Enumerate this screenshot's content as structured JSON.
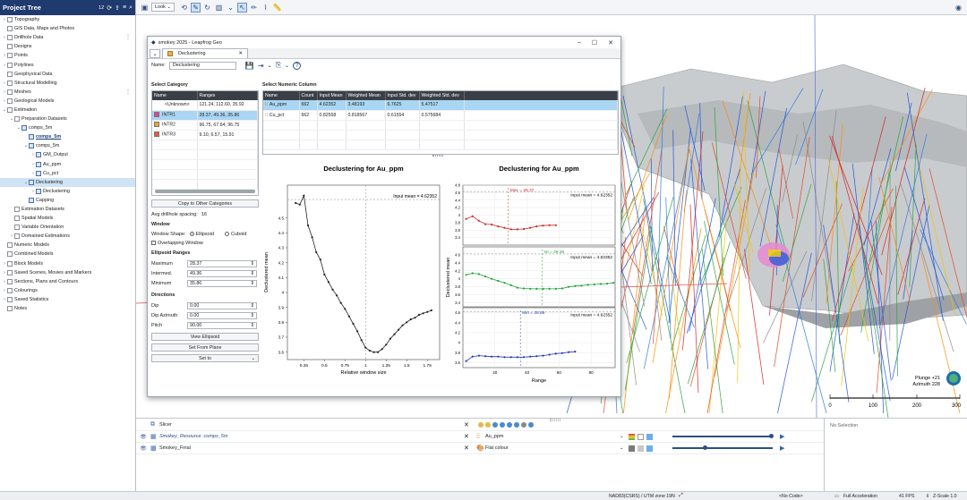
{
  "project_tree": {
    "title": "Project Tree",
    "counter": "12",
    "items": [
      {
        "label": "Topography",
        "level": 0,
        "chev": "›"
      },
      {
        "label": "GIS Data, Maps and Photos",
        "level": 0,
        "chev": ""
      },
      {
        "label": "Drillhole Data",
        "level": 0,
        "chev": "›",
        "kebab": true
      },
      {
        "label": "Designs",
        "level": 0,
        "chev": ""
      },
      {
        "label": "Points",
        "level": 0,
        "chev": "›"
      },
      {
        "label": "Polylines",
        "level": 0,
        "chev": "›"
      },
      {
        "label": "Geophysical Data",
        "level": 0,
        "chev": ""
      },
      {
        "label": "Structural Modelling",
        "level": 0,
        "chev": "›"
      },
      {
        "label": "Meshes",
        "level": 0,
        "chev": "›",
        "kebab": true
      },
      {
        "label": "Geological Models",
        "level": 0,
        "chev": "›"
      },
      {
        "label": "Estimation",
        "level": 0,
        "chev": "⌄"
      },
      {
        "label": "Preparation Datasets",
        "level": 1,
        "chev": "⌄"
      },
      {
        "label": "comps_5m",
        "level": 2,
        "chev": "⌄"
      },
      {
        "label": "comps_5m",
        "level": 3,
        "chev": "",
        "bold": true
      },
      {
        "label": "comps_5m",
        "level": 3,
        "chev": "⌄"
      },
      {
        "label": "GM_Output",
        "level": 4,
        "chev": "›"
      },
      {
        "label": "Au_ppm",
        "level": 4,
        "chev": "›"
      },
      {
        "label": "Cu_pct",
        "level": 4,
        "chev": "›"
      },
      {
        "label": "Declustering",
        "level": 3,
        "chev": "⌄",
        "selected": true
      },
      {
        "label": "Declustering",
        "level": 4,
        "chev": "›"
      },
      {
        "label": "Capping",
        "level": 3,
        "chev": ""
      },
      {
        "label": "Estimation Datasets",
        "level": 1,
        "chev": ""
      },
      {
        "label": "Spatial Models",
        "level": 1,
        "chev": ""
      },
      {
        "label": "Variable Orientation",
        "level": 1,
        "chev": ""
      },
      {
        "label": "Domained Estimations",
        "level": 1,
        "chev": "›"
      },
      {
        "label": "Numeric Models",
        "level": 0,
        "chev": ""
      },
      {
        "label": "Combined Models",
        "level": 0,
        "chev": ""
      },
      {
        "label": "Block Models",
        "level": 0,
        "chev": "›"
      },
      {
        "label": "Saved Scenes, Movies and Markers",
        "level": 0,
        "chev": "›"
      },
      {
        "label": "Sections, Plans and Contours",
        "level": 0,
        "chev": "›"
      },
      {
        "label": "Colourings",
        "level": 0,
        "chev": "›"
      },
      {
        "label": "Saved Statistics",
        "level": 0,
        "chev": "›"
      },
      {
        "label": "Notes",
        "level": 0,
        "chev": ""
      }
    ]
  },
  "toolbar": {
    "look_label": "Look"
  },
  "dialog": {
    "title": "smokey 2025 - Leapfrog Geo",
    "tab_label": "Declustering",
    "name_label": "Name:",
    "name_value": "Declustering",
    "category": {
      "title": "Select Category",
      "headers": [
        "Name",
        "Ranges"
      ],
      "rows": [
        {
          "name": "<Unknown>",
          "ranges": "121.24, 112.60, 35.92",
          "color": ""
        },
        {
          "name": "INTR1",
          "ranges": "28.37, 49.36, 35.86",
          "color": "#e040b0",
          "hl": true
        },
        {
          "name": "INTR2",
          "ranges": "96.75, 67.64, 96.75",
          "color": "#f0a030"
        },
        {
          "name": "INTR3",
          "ranges": "9.10, 6.57, 15.91",
          "color": "#e85a3a"
        }
      ],
      "copy_button": "Copy to Other Categories",
      "avg_spacing_label": "Avg drillhole spacing:",
      "avg_spacing_value": "16"
    },
    "window": {
      "title": "Window",
      "shape_label": "Window Shape:",
      "opt_ellipsoid": "Ellipsoid",
      "opt_cuboid": "Cuboid",
      "overlapping": "Overlapping Window"
    },
    "ellipsoid": {
      "title": "Ellipsoid Ranges",
      "fields": [
        {
          "label": "Maximum",
          "value": "28.37"
        },
        {
          "label": "Intermed.",
          "value": "49.36"
        },
        {
          "label": "Minimum",
          "value": "35.86"
        }
      ]
    },
    "directions": {
      "title": "Directions",
      "fields": [
        {
          "label": "Dip",
          "value": "0.00"
        },
        {
          "label": "Dip Azimuth",
          "value": "0.00"
        },
        {
          "label": "Pitch",
          "value": "90.00"
        }
      ],
      "view_ellipsoid": "View Ellipsoid",
      "set_from_plane": "Set From Plane",
      "set_to": "Set to"
    },
    "numeric": {
      "title": "Select Numeric Column",
      "headers": [
        "Name",
        "Count",
        "Input Mean",
        "Weighted Mean",
        "Input Std. dev",
        "Weighted Std. dev"
      ],
      "rows": [
        {
          "cells": [
            "Au_ppm",
            "662",
            "4.62352",
            "3.48193",
            "6.7625",
            "5.47517"
          ],
          "hl": true
        },
        {
          "cells": [
            "Cu_pct",
            "662",
            "0.82558",
            "0.818567",
            "0.61554",
            "0.575684"
          ]
        }
      ]
    }
  },
  "chart_data": [
    {
      "type": "line",
      "title": "Declustering for Au_ppm",
      "xlabel": "Relative window size",
      "ylabel": "Declustered mean",
      "xlim": [
        0.05,
        1.9
      ],
      "ylim": [
        3.55,
        4.72
      ],
      "xticks": [
        "0.25",
        "0.5",
        "0.75",
        "1",
        "1.25",
        "1.5",
        "1.75"
      ],
      "xtick_values": [
        0.25,
        0.5,
        0.75,
        1,
        1.25,
        1.5,
        1.75
      ],
      "yticks": [
        "3.6",
        "3.7",
        "3.8",
        "3.9",
        "4",
        "4.1",
        "4.2",
        "4.3",
        "4.4",
        "4.5"
      ],
      "ytick_values": [
        3.6,
        3.7,
        3.8,
        3.9,
        4,
        4.1,
        4.2,
        4.3,
        4.4,
        4.5
      ],
      "input_mean_label": "Input mean = 4.62352",
      "input_mean": 4.62352,
      "vline": 1.0,
      "x": [
        0.15,
        0.2,
        0.25,
        0.3,
        0.35,
        0.4,
        0.45,
        0.5,
        0.55,
        0.6,
        0.65,
        0.7,
        0.75,
        0.8,
        0.85,
        0.9,
        0.95,
        1.0,
        1.05,
        1.1,
        1.15,
        1.2,
        1.25,
        1.3,
        1.35,
        1.4,
        1.45,
        1.5,
        1.55,
        1.6,
        1.65,
        1.7,
        1.75,
        1.8
      ],
      "y": [
        4.6,
        4.59,
        4.65,
        4.45,
        4.37,
        4.27,
        4.22,
        4.12,
        4.07,
        4.02,
        3.98,
        3.93,
        3.89,
        3.84,
        3.79,
        3.74,
        3.68,
        3.63,
        3.61,
        3.6,
        3.6,
        3.62,
        3.65,
        3.69,
        3.72,
        3.75,
        3.78,
        3.8,
        3.82,
        3.83,
        3.85,
        3.86,
        3.87,
        3.88
      ]
    },
    {
      "type": "line",
      "title": "Declustering for Au_ppm",
      "xlabel": "Range",
      "ylabel": "Declustered mean",
      "xlim": [
        0,
        95
      ],
      "xticks": [
        "20",
        "40",
        "60",
        "80"
      ],
      "xtick_values": [
        20,
        40,
        60,
        80
      ],
      "panels": [
        {
          "name": "Maximum",
          "label": "Max = 28.37",
          "vline": 28.37,
          "color": "#cc2a2a",
          "ylim": [
            3.2,
            4.8
          ],
          "yticks": [
            "3.4",
            "3.6",
            "3.8",
            "4",
            "4.2",
            "4.4",
            "4.6",
            "4.8"
          ],
          "ytick_values": [
            3.4,
            3.6,
            3.8,
            4,
            4.2,
            4.4,
            4.6,
            4.8
          ],
          "input_mean": 4.62352,
          "input_mean_label": "Input mean = 4.62352",
          "x": [
            2,
            6,
            10,
            14,
            18,
            22,
            26,
            30,
            34,
            38,
            42,
            46,
            50,
            54,
            58
          ],
          "y": [
            3.9,
            3.97,
            3.85,
            3.76,
            3.75,
            3.7,
            3.66,
            3.62,
            3.62,
            3.63,
            3.66,
            3.7,
            3.72,
            3.73,
            3.73
          ]
        },
        {
          "name": "Intermed.",
          "label": "Int = 49.36",
          "vline": 49.36,
          "color": "#23a33a",
          "ylim": [
            3.3,
            4.8
          ],
          "yticks": [
            "3.4",
            "3.6",
            "3.8",
            "4",
            "4.2",
            "4.4",
            "4.6"
          ],
          "ytick_values": [
            3.4,
            3.6,
            3.8,
            4,
            4.2,
            4.4,
            4.6
          ],
          "input_mean": 4.62352,
          "input_mean_label": "Input mean = 4.62352",
          "x": [
            2,
            6,
            10,
            14,
            18,
            22,
            26,
            30,
            34,
            38,
            42,
            46,
            50,
            54,
            58,
            62,
            66,
            70,
            74,
            78,
            82,
            86,
            90,
            94
          ],
          "y": [
            4.1,
            4.14,
            4.12,
            4.06,
            4.0,
            3.95,
            3.9,
            3.84,
            3.78,
            3.76,
            3.75,
            3.75,
            3.75,
            3.75,
            3.75,
            3.76,
            3.8,
            3.82,
            3.83,
            3.85,
            3.86,
            3.87,
            3.88,
            3.9
          ]
        },
        {
          "name": "Minimum",
          "label": "Min = 35.86",
          "vline": 35.86,
          "color": "#2838b8",
          "ylim": [
            3.5,
            4.7
          ],
          "yticks": [
            "3.6",
            "3.8",
            "4",
            "4.2",
            "4.4",
            "4.6"
          ],
          "ytick_values": [
            3.6,
            3.8,
            4,
            4.2,
            4.4,
            4.6
          ],
          "input_mean": 4.62352,
          "input_mean_label": "Input mean = 4.62352",
          "x": [
            2,
            6,
            10,
            14,
            18,
            22,
            26,
            30,
            34,
            38,
            42,
            46,
            50,
            54,
            58,
            62,
            66,
            70
          ],
          "y": [
            3.63,
            3.72,
            3.74,
            3.73,
            3.72,
            3.72,
            3.71,
            3.71,
            3.71,
            3.71,
            3.72,
            3.73,
            3.74,
            3.76,
            3.78,
            3.79,
            3.81,
            3.82
          ]
        }
      ]
    }
  ],
  "scene": {
    "plunge": "Plunge +21",
    "azimuth": "Azimuth 228",
    "scale_ticks": [
      "0",
      "100",
      "200",
      "300"
    ]
  },
  "shown_items": {
    "rows": [
      {
        "name": "Slicer",
        "italic": false,
        "icon": "slicer"
      },
      {
        "name": "Smokey_Resource: comps_5m",
        "italic": true,
        "property": "Au_ppm",
        "icon": "points"
      },
      {
        "name": "Smokey_Final",
        "italic": false,
        "property": "Flat colour",
        "icon": "mesh"
      }
    ],
    "no_selection": "No Selection"
  },
  "status_bar": {
    "crs": "NAD83(CSRS) / UTM zone 19N",
    "code": "<No Code>",
    "accel": "Full Acceleration",
    "fps": "41 FPS",
    "zscale": "Z-Scale 1.0"
  },
  "colors": {
    "accent": "#1f3a6e",
    "selection": "#a9d6f2"
  }
}
